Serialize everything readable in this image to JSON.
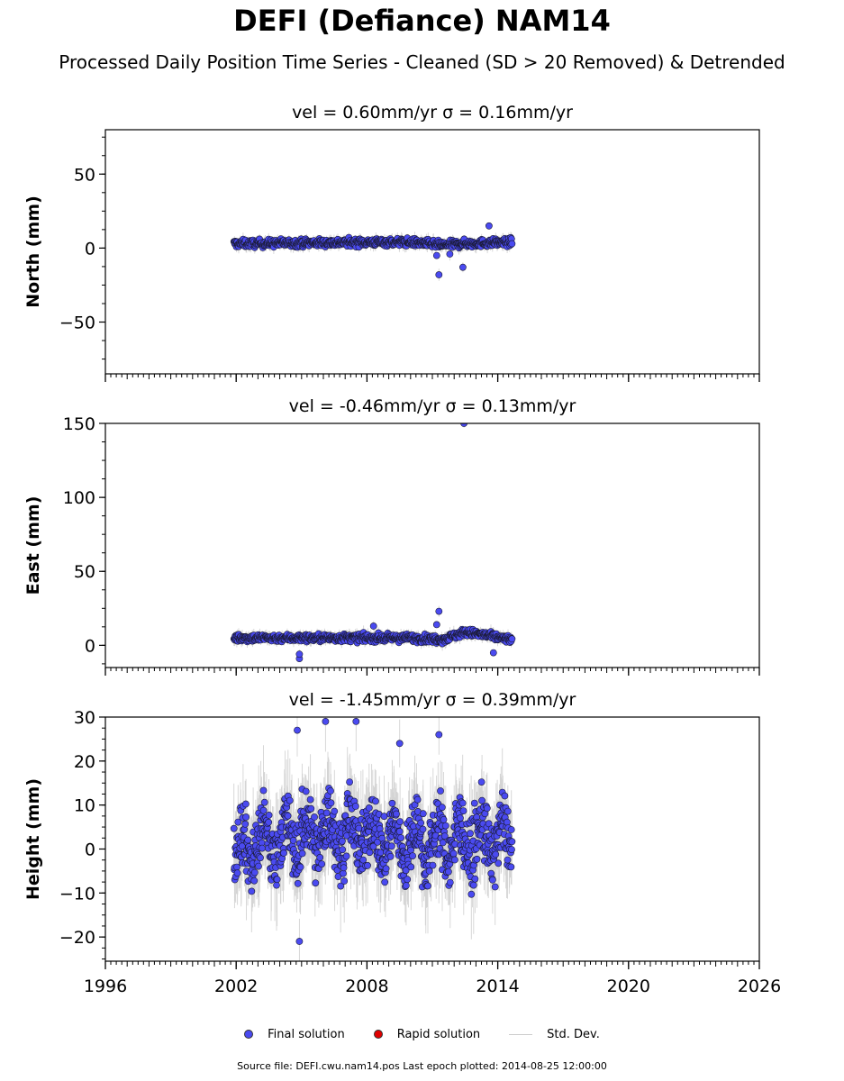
{
  "header": {
    "title": "DEFI (Defiance) NAM14",
    "subtitle": "Processed Daily Position Time Series - Cleaned (SD > 20 Removed) & Detrended"
  },
  "legend": {
    "items": [
      {
        "label": "Final solution",
        "color": "#4a4af0",
        "kind": "dot"
      },
      {
        "label": "Rapid solution",
        "color": "#e00000",
        "kind": "dot"
      },
      {
        "label": "Std. Dev.",
        "color": "#cccccc",
        "kind": "line"
      }
    ]
  },
  "footer": {
    "source": "Source file: DEFI.cwu.nam14.pos  Last epoch plotted: 2014-08-25 12:00:00"
  },
  "chart_data": [
    {
      "type": "scatter",
      "title": "vel = 0.60mm/yr   σ = 0.16mm/yr",
      "ylabel": "North (mm)",
      "xlim": [
        1996,
        2026
      ],
      "ylim": [
        -85,
        80
      ],
      "yticks": [
        -50,
        0,
        50
      ],
      "yticklabels": [
        "−50",
        "0",
        "50"
      ],
      "data_range": [
        2001.9,
        2014.65
      ],
      "spread": 1.8,
      "err": 3,
      "trend": [
        [
          2001.9,
          3
        ],
        [
          2005,
          3.5
        ],
        [
          2008,
          4
        ],
        [
          2010,
          4
        ],
        [
          2011.5,
          2
        ],
        [
          2012.5,
          3
        ],
        [
          2014.6,
          4
        ]
      ],
      "outliers": [
        [
          2011.3,
          -18
        ],
        [
          2012.4,
          -13
        ],
        [
          2013.6,
          15
        ],
        [
          2011.2,
          -5
        ],
        [
          2011.8,
          -4
        ]
      ]
    },
    {
      "type": "scatter",
      "title": "vel = -0.46mm/yr   σ = 0.13mm/yr",
      "ylabel": "East (mm)",
      "xlim": [
        1996,
        2026
      ],
      "ylim": [
        -15,
        150
      ],
      "yticks": [
        0,
        50,
        100,
        150
      ],
      "yticklabels": [
        "0",
        "50",
        "100",
        "150"
      ],
      "data_range": [
        2001.9,
        2014.65
      ],
      "spread": 1.8,
      "err": 3,
      "trend": [
        [
          2001.9,
          5
        ],
        [
          2006,
          5
        ],
        [
          2010,
          5
        ],
        [
          2011.5,
          4
        ],
        [
          2012.5,
          9
        ],
        [
          2014.6,
          4
        ]
      ],
      "outliers": [
        [
          2012.45,
          150
        ],
        [
          2011.3,
          23
        ],
        [
          2011.2,
          14
        ],
        [
          2008.3,
          13
        ],
        [
          2004.9,
          -9
        ],
        [
          2004.9,
          -6
        ],
        [
          2013.8,
          -5
        ]
      ]
    },
    {
      "type": "scatter",
      "title": "vel = -1.45mm/yr   σ = 0.39mm/yr",
      "ylabel": "Height (mm)",
      "xlim": [
        1996,
        2026
      ],
      "ylim": [
        -25.5,
        30
      ],
      "yticks": [
        -20,
        -10,
        0,
        10,
        20,
        30
      ],
      "yticklabels": [
        "−20",
        "−10",
        "0",
        "10",
        "20",
        "30"
      ],
      "xticks": [
        1996,
        2002,
        2008,
        2014,
        2020,
        2026
      ],
      "data_range": [
        2001.9,
        2014.65
      ],
      "spread": 7,
      "err": 7,
      "trend": [
        [
          2001.9,
          0
        ],
        [
          2004,
          2
        ],
        [
          2006,
          4
        ],
        [
          2008,
          3
        ],
        [
          2010,
          1
        ],
        [
          2012,
          2
        ],
        [
          2014.6,
          2
        ]
      ],
      "outliers": [
        [
          2004.8,
          27
        ],
        [
          2006.1,
          29
        ],
        [
          2007.5,
          29
        ],
        [
          2004.9,
          -21
        ],
        [
          2009.5,
          24
        ],
        [
          2011.3,
          26
        ]
      ]
    }
  ]
}
